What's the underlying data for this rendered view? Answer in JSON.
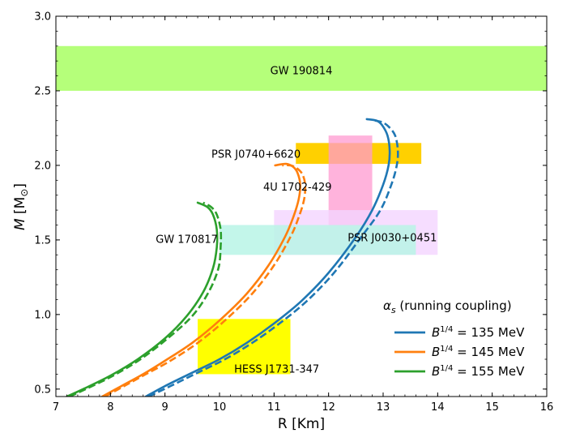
{
  "chart_data": {
    "type": "line",
    "xlabel": "R [Km]",
    "ylabel": "M [M⊙]",
    "xlim": [
      7,
      16
    ],
    "ylim": [
      0.45,
      3.0
    ],
    "x_ticks": [
      "7",
      "8",
      "9",
      "10",
      "11",
      "12",
      "13",
      "14",
      "15",
      "16"
    ],
    "y_ticks": [
      "0.5",
      "1.0",
      "1.5",
      "2.0",
      "2.5",
      "3.0"
    ],
    "grid": false,
    "legend": {
      "placement": "bottom-right",
      "title": "αs (running coupling)"
    },
    "regions": [
      {
        "name": "GW 190814",
        "x": [
          7,
          16
        ],
        "y": [
          2.5,
          2.8
        ],
        "color": "#b5ff7a"
      },
      {
        "name": "PSR J0740+6620",
        "x": [
          11.4,
          13.7
        ],
        "y": [
          2.01,
          2.15
        ],
        "color": "#ffd000"
      },
      {
        "name": "4U 1702-429",
        "x": [
          12.0,
          12.8
        ],
        "y": [
          1.6,
          2.2
        ],
        "color": "#ff9ad0"
      },
      {
        "name": "PSR J0030+0451",
        "x": [
          11.0,
          14.0
        ],
        "y": [
          1.4,
          1.7
        ],
        "color": "#f4d4ff"
      },
      {
        "name": "GW 170817",
        "x": [
          10.0,
          13.6
        ],
        "y": [
          1.4,
          1.6
        ],
        "color": "#b9f5e6"
      },
      {
        "name": "HESS J1731-347",
        "x": [
          9.6,
          11.3
        ],
        "y": [
          0.6,
          0.97
        ],
        "color": "#ffff00"
      }
    ],
    "series": [
      {
        "name": "B1/4 = 135 MeV",
        "color": "#1f77b4",
        "solid": [
          [
            8.65,
            0.45
          ],
          [
            9.0,
            0.52
          ],
          [
            9.5,
            0.61
          ],
          [
            10.0,
            0.7
          ],
          [
            10.5,
            0.81
          ],
          [
            11.0,
            0.94
          ],
          [
            11.5,
            1.09
          ],
          [
            12.0,
            1.28
          ],
          [
            12.5,
            1.52
          ],
          [
            12.8,
            1.7
          ],
          [
            13.0,
            1.87
          ],
          [
            13.1,
            2.0
          ],
          [
            13.12,
            2.1
          ],
          [
            13.08,
            2.2
          ],
          [
            12.98,
            2.27
          ],
          [
            12.88,
            2.3
          ],
          [
            12.7,
            2.31
          ]
        ],
        "dashed": [
          [
            8.7,
            0.45
          ],
          [
            9.1,
            0.52
          ],
          [
            9.6,
            0.61
          ],
          [
            10.1,
            0.7
          ],
          [
            10.6,
            0.81
          ],
          [
            11.1,
            0.94
          ],
          [
            11.6,
            1.09
          ],
          [
            12.1,
            1.28
          ],
          [
            12.6,
            1.52
          ],
          [
            12.95,
            1.7
          ],
          [
            13.15,
            1.87
          ],
          [
            13.25,
            2.0
          ],
          [
            13.27,
            2.1
          ],
          [
            13.22,
            2.2
          ],
          [
            13.1,
            2.26
          ],
          [
            12.98,
            2.29
          ],
          [
            12.85,
            2.3
          ]
        ]
      },
      {
        "name": "B1/4 = 145 MeV",
        "color": "#ff7f0e",
        "solid": [
          [
            7.85,
            0.45
          ],
          [
            8.2,
            0.52
          ],
          [
            8.6,
            0.6
          ],
          [
            9.0,
            0.69
          ],
          [
            9.5,
            0.81
          ],
          [
            10.0,
            0.96
          ],
          [
            10.5,
            1.14
          ],
          [
            10.9,
            1.33
          ],
          [
            11.2,
            1.52
          ],
          [
            11.35,
            1.65
          ],
          [
            11.45,
            1.77
          ],
          [
            11.48,
            1.87
          ],
          [
            11.43,
            1.95
          ],
          [
            11.35,
            1.99
          ],
          [
            11.22,
            2.01
          ],
          [
            11.02,
            2.0
          ]
        ],
        "dashed": [
          [
            7.9,
            0.45
          ],
          [
            8.25,
            0.52
          ],
          [
            8.65,
            0.6
          ],
          [
            9.1,
            0.69
          ],
          [
            9.6,
            0.81
          ],
          [
            10.1,
            0.96
          ],
          [
            10.6,
            1.14
          ],
          [
            11.0,
            1.33
          ],
          [
            11.3,
            1.52
          ],
          [
            11.45,
            1.65
          ],
          [
            11.55,
            1.77
          ],
          [
            11.57,
            1.87
          ],
          [
            11.52,
            1.94
          ],
          [
            11.42,
            1.98
          ],
          [
            11.3,
            2.0
          ],
          [
            11.15,
            2.0
          ]
        ]
      },
      {
        "name": "B1/4 = 155 MeV",
        "color": "#2ca02c",
        "solid": [
          [
            7.2,
            0.45
          ],
          [
            7.5,
            0.5
          ],
          [
            8.0,
            0.59
          ],
          [
            8.5,
            0.7
          ],
          [
            9.0,
            0.84
          ],
          [
            9.4,
            0.99
          ],
          [
            9.7,
            1.15
          ],
          [
            9.88,
            1.31
          ],
          [
            9.95,
            1.45
          ],
          [
            9.95,
            1.57
          ],
          [
            9.88,
            1.67
          ],
          [
            9.78,
            1.72
          ],
          [
            9.6,
            1.75
          ]
        ],
        "dashed": [
          [
            7.25,
            0.45
          ],
          [
            7.55,
            0.5
          ],
          [
            8.05,
            0.59
          ],
          [
            8.55,
            0.7
          ],
          [
            9.05,
            0.84
          ],
          [
            9.5,
            0.99
          ],
          [
            9.8,
            1.15
          ],
          [
            9.98,
            1.31
          ],
          [
            10.02,
            1.45
          ],
          [
            10.02,
            1.57
          ],
          [
            9.95,
            1.67
          ],
          [
            9.85,
            1.72
          ],
          [
            9.7,
            1.75
          ]
        ]
      }
    ]
  }
}
